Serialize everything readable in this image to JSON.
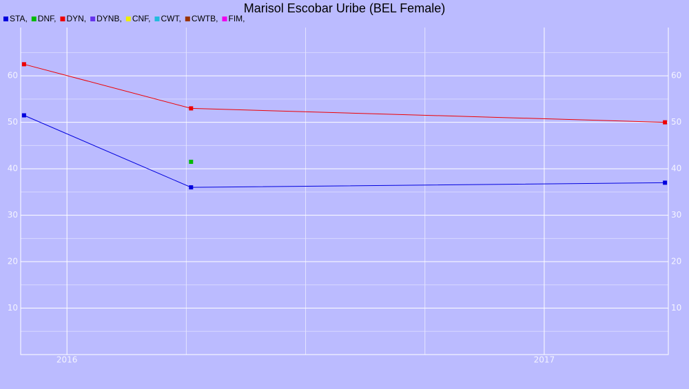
{
  "chart_data": {
    "type": "line",
    "title": "Marisol Escobar Uribe (BEL Female)",
    "x": [
      2015.91,
      2016.26,
      2017.253
    ],
    "xlim": [
      2015.903,
      2017.26
    ],
    "xticks": [
      2016,
      2017
    ],
    "xminor": [
      2016.25,
      2016.5,
      2016.75
    ],
    "ylim": [
      0,
      70.4
    ],
    "yticks": [
      10,
      20,
      30,
      40,
      50,
      60
    ],
    "yminor": [
      5,
      15,
      25,
      35,
      45,
      55,
      65
    ],
    "grid": true,
    "series": [
      {
        "name": "STA,",
        "color": "#0000dd",
        "values": [
          51.5,
          36,
          37
        ]
      },
      {
        "name": "DNF,",
        "color": "#00bb00",
        "values": [
          null,
          41.5,
          null
        ]
      },
      {
        "name": "DYN,",
        "color": "#ee0000",
        "values": [
          62.5,
          53,
          50
        ]
      },
      {
        "name": "DYNB,",
        "color": "#6633ee",
        "values": [
          null,
          null,
          null
        ]
      },
      {
        "name": "CNF,",
        "color": "#eeee00",
        "values": [
          null,
          null,
          null
        ]
      },
      {
        "name": "CWT,",
        "color": "#22bbdd",
        "values": [
          null,
          null,
          null
        ]
      },
      {
        "name": "CWTB,",
        "color": "#993300",
        "values": [
          null,
          null,
          null
        ]
      },
      {
        "name": "FIM,",
        "color": "#ee00ee",
        "values": [
          null,
          null,
          null
        ]
      }
    ]
  }
}
